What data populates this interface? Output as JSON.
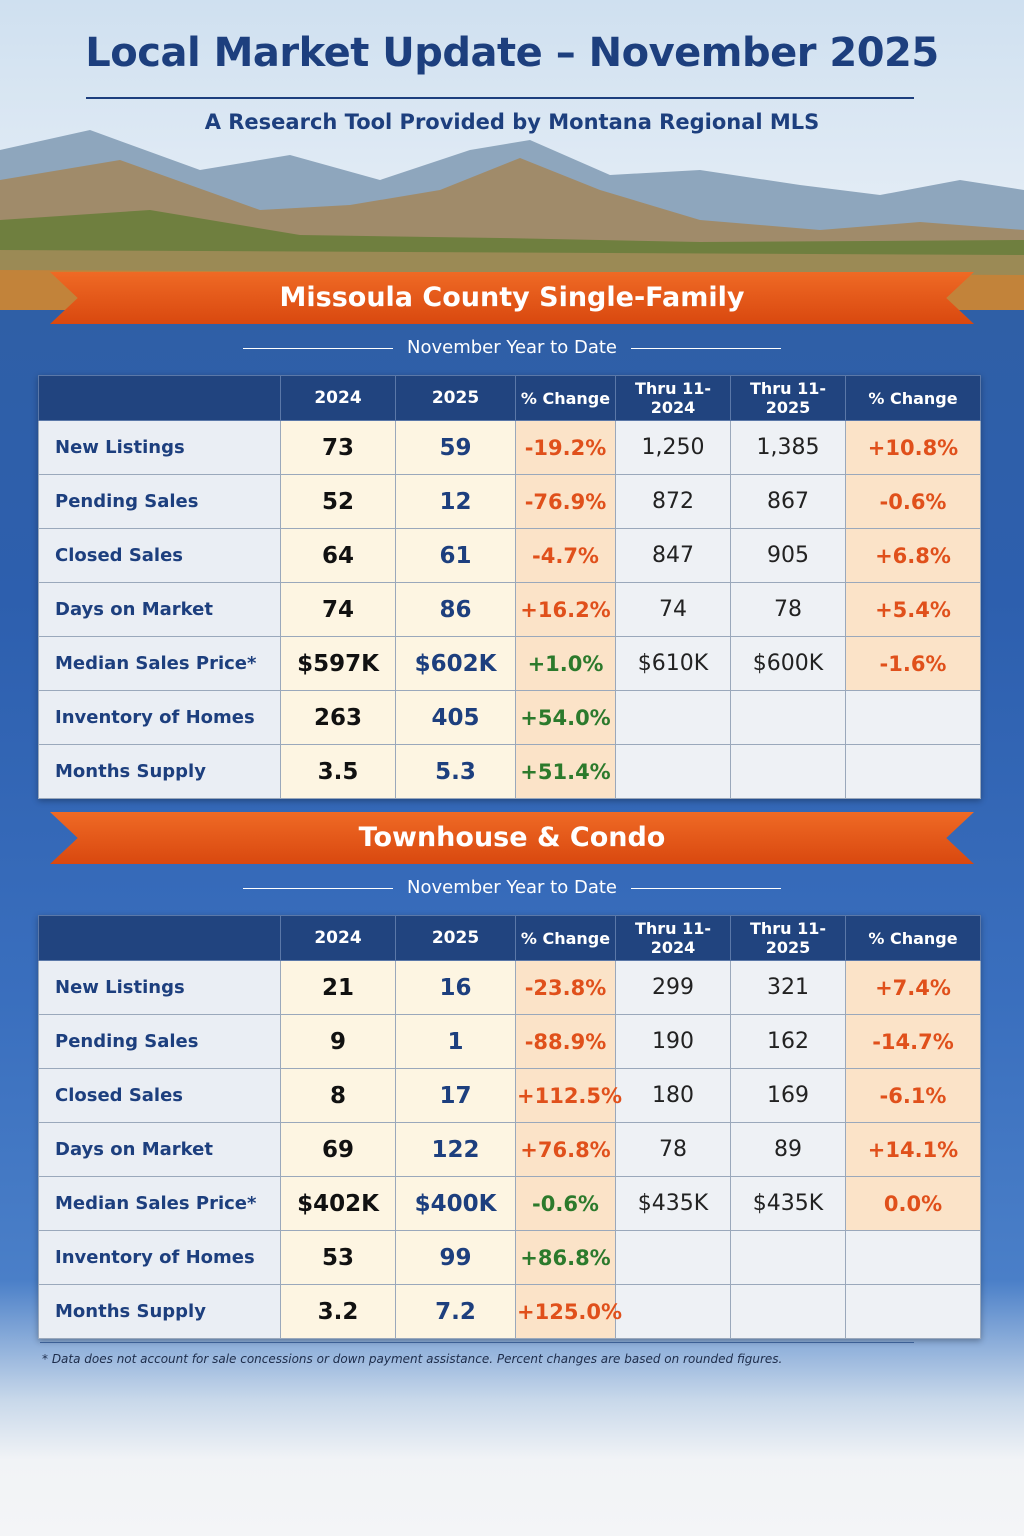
{
  "header": {
    "title": "Local Market Update – November 2025",
    "subtitle": "A Research Tool Provided by Montana Regional MLS"
  },
  "sections": [
    {
      "title": "Missoula County Single-Family",
      "subtitle": "November Year to Date",
      "columns": [
        "2024",
        "2025",
        "% Change",
        "Thru 11-2024",
        "Thru 11-2025",
        "% Change"
      ],
      "rows": [
        {
          "label": "New Listings",
          "cells": [
            "73",
            "59",
            "-19.2%",
            "1,250",
            "1,385",
            "+10.8%"
          ]
        },
        {
          "label": "Pending Sales",
          "cells": [
            "52",
            "12",
            "-76.9%",
            "872",
            "867",
            "-0.6%"
          ]
        },
        {
          "label": "Closed Sales",
          "cells": [
            "64",
            "61",
            "-4.7%",
            "847",
            "905",
            "+6.8%"
          ]
        },
        {
          "label": "Days on Market",
          "cells": [
            "74",
            "86",
            "+16.2%",
            "74",
            "78",
            "+5.4%"
          ]
        },
        {
          "label": "Median Sales Price*",
          "cells": [
            "$597K",
            "$602K",
            "+1.0%",
            "$610K",
            "$600K",
            "-1.6%"
          ]
        },
        {
          "label": "Inventory of Homes",
          "cells": [
            "263",
            "405",
            "+54.0%"
          ]
        },
        {
          "label": "Months Supply",
          "cells": [
            "3.5",
            "5.3",
            "+51.4%"
          ]
        }
      ]
    },
    {
      "title": "Townhouse & Condo",
      "subtitle": "November Year to Date",
      "columns": [
        "2024",
        "2025",
        "% Change",
        "Thru 11-2024",
        "Thru 11-2025",
        "% Change"
      ],
      "rows": [
        {
          "label": "New Listings",
          "cells": [
            "21",
            "16",
            "-23.8%",
            "299",
            "321",
            "+7.4%"
          ]
        },
        {
          "label": "Pending Sales",
          "cells": [
            "9",
            "1",
            "-88.9%",
            "190",
            "162",
            "-14.7%"
          ]
        },
        {
          "label": "Closed Sales",
          "cells": [
            "8",
            "17",
            "+112.5%",
            "180",
            "169",
            "-6.1%"
          ]
        },
        {
          "label": "Days on Market",
          "cells": [
            "69",
            "122",
            "+76.8%",
            "78",
            "89",
            "+14.1%"
          ]
        },
        {
          "label": "Median Sales Price*",
          "cells": [
            "$402K",
            "$400K",
            "-0.6%",
            "$435K",
            "$435K",
            "0.0%"
          ]
        },
        {
          "label": "Inventory of Homes",
          "cells": [
            "53",
            "99",
            "+86.8%"
          ]
        },
        {
          "label": "Months Supply",
          "cells": [
            "3.2",
            "7.2",
            "+125.0%"
          ]
        }
      ]
    }
  ],
  "footnote": "* Data does not account for sale concessions or down payment assistance. Percent changes are based on rounded figures."
}
